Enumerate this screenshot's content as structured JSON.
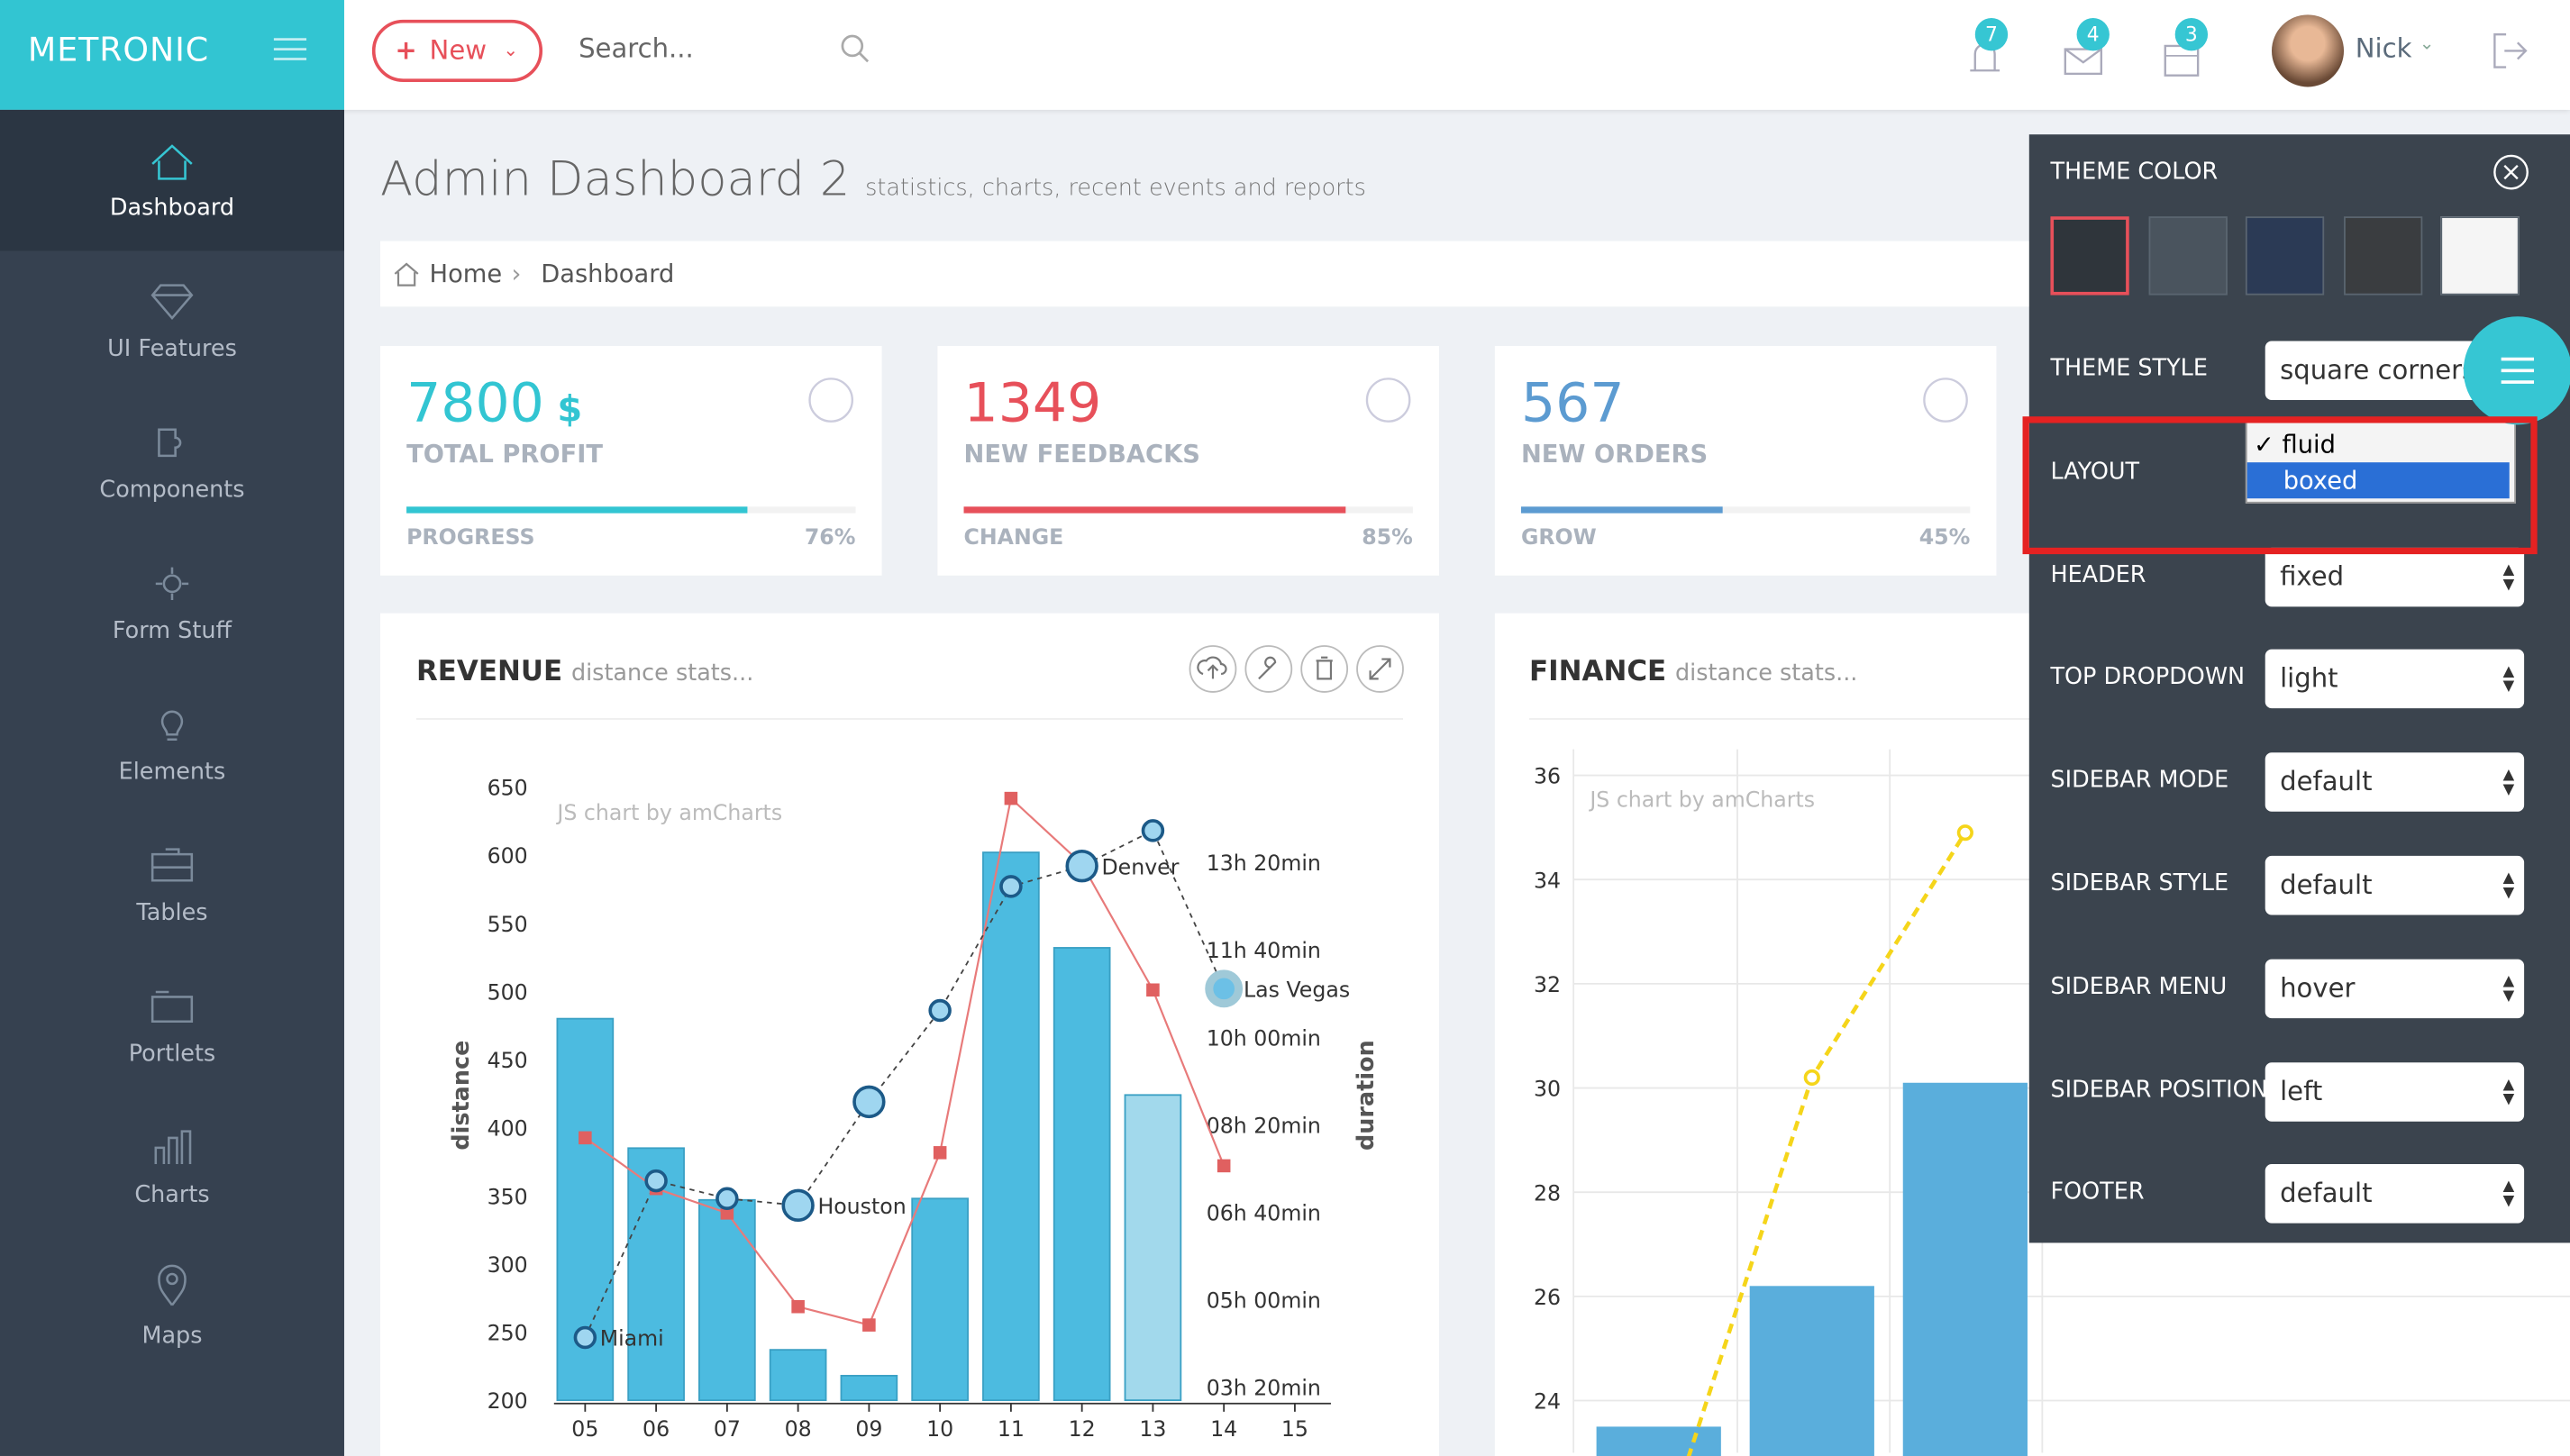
{
  "header": {
    "brand": "METRONIC",
    "new_button": "New",
    "search_placeholder": "Search...",
    "badges": [
      7,
      4,
      3
    ],
    "user": "Nick"
  },
  "sidebar": {
    "items": [
      "Dashboard",
      "UI Features",
      "Components",
      "Form Stuff",
      "Elements",
      "Tables",
      "Portlets",
      "Charts",
      "Maps"
    ]
  },
  "page": {
    "title": "Admin Dashboard 2",
    "subtitle": "statistics, charts, recent events and reports",
    "breadcrumb": [
      "Home",
      "Dashboard"
    ]
  },
  "stats": [
    {
      "value": "7800",
      "unit": "$",
      "label": "TOTAL PROFIT",
      "bar_label": "PROGRESS",
      "percent": 76,
      "percent_label": "76%",
      "color": "#32c5d2"
    },
    {
      "value": "1349",
      "label": "NEW FEEDBACKS",
      "bar_label": "CHANGE",
      "percent": 85,
      "percent_label": "85%",
      "color": "#e7505a"
    },
    {
      "value": "567",
      "label": "NEW ORDERS",
      "bar_label": "GROW",
      "percent": 45,
      "percent_label": "45%",
      "color": "#5c9bd1"
    }
  ],
  "revenue_chart": {
    "type": "bar",
    "title": "REVENUE",
    "subtitle": "distance stats...",
    "credit": "JS chart by amCharts",
    "y_label": "distance",
    "y2_label": "duration",
    "categories": [
      "05",
      "06",
      "07",
      "08",
      "09",
      "10",
      "11",
      "12",
      "13",
      "14",
      "15"
    ],
    "values": [
      480,
      385,
      347,
      237,
      218,
      348,
      602,
      532,
      424,
      null,
      null
    ],
    "bar_colors": [
      "#4cbbe0",
      "#4cbbe0",
      "#4cbbe0",
      "#4cbbe0",
      "#4cbbe0",
      "#4cbbe0",
      "#4cbbe0",
      "#4cbbe0",
      "#a2d9ec",
      null,
      null
    ],
    "line_values": [
      246,
      361,
      348,
      343,
      419,
      486,
      577,
      592,
      618,
      502,
      null
    ],
    "point_labels": [
      "Miami",
      null,
      null,
      "Houston",
      null,
      null,
      null,
      "Denver",
      null,
      "Las Vegas",
      null
    ],
    "duration_values": [
      485,
      427,
      399,
      292,
      271,
      468,
      873,
      798,
      654,
      453,
      null
    ],
    "ylim": [
      200,
      650
    ],
    "yticks": [
      200,
      250,
      300,
      350,
      400,
      450,
      500,
      550,
      600,
      650
    ],
    "y2lim": [
      185,
      886
    ],
    "y2ticks": [
      {
        "value": 200,
        "label": "03h 20min"
      },
      {
        "value": 300,
        "label": "05h 00min"
      },
      {
        "value": 400,
        "label": "06h 40min"
      },
      {
        "value": 500,
        "label": "08h 20min"
      },
      {
        "value": 600,
        "label": "10h 00min"
      },
      {
        "value": 700,
        "label": "11h 40min"
      },
      {
        "value": 800,
        "label": "13h 20min"
      }
    ]
  },
  "finance_chart": {
    "type": "bar",
    "title": "FINANCE",
    "subtitle": "distance stats...",
    "credit": "JS chart by amCharts",
    "values": [
      23.5,
      26.2,
      30.1
    ],
    "line_values": [
      22.9,
      30.2,
      34.9
    ],
    "color": "#5aaedc",
    "line_color": "#f5d51a",
    "ylim": [
      23,
      36.5
    ],
    "yticks": [
      24,
      26,
      28,
      30,
      32,
      34,
      36
    ],
    "grid": true
  },
  "theme_panel": {
    "title": "THEME COLOR",
    "swatches": [
      "#2f353b",
      "#4a545e",
      "#2b3a55",
      "#3a3d40",
      "#f5f5f5"
    ],
    "rows": [
      {
        "label": "THEME STYLE",
        "value": "square corners"
      },
      {
        "label": "LAYOUT",
        "options": [
          "fluid",
          "boxed"
        ]
      },
      {
        "label": "HEADER",
        "value": "fixed"
      },
      {
        "label": "TOP DROPDOWN",
        "value": "light"
      },
      {
        "label": "SIDEBAR MODE",
        "value": "default"
      },
      {
        "label": "SIDEBAR STYLE",
        "value": "default"
      },
      {
        "label": "SIDEBAR MENU",
        "value": "hover"
      },
      {
        "label": "SIDEBAR POSITION",
        "value": "left"
      },
      {
        "label": "FOOTER",
        "value": "default"
      }
    ]
  }
}
